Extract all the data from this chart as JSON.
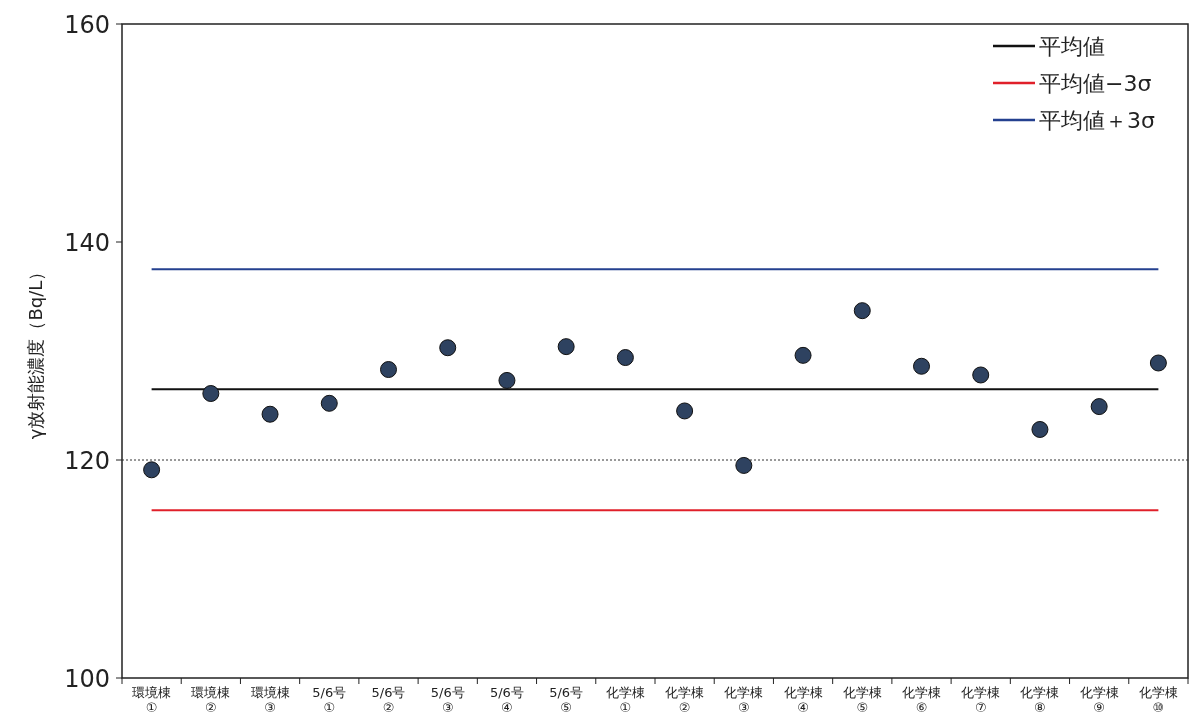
{
  "chart_data": {
    "type": "scatter",
    "ylabel": "γ放射能濃度（Bq/L）",
    "categories": [
      "環境棟①",
      "環境棟②",
      "環境棟③",
      "5/6号①",
      "5/6号②",
      "5/6号③",
      "5/6号④",
      "5/6号⑤",
      "化学棟①",
      "化学棟②",
      "化学棟③",
      "化学棟④",
      "化学棟⑤",
      "化学棟⑥",
      "化学棟⑦",
      "化学棟⑧",
      "化学棟⑨",
      "化学棟⑩"
    ],
    "ylim": [
      100,
      160
    ],
    "yticks": [
      100,
      120,
      140,
      160
    ],
    "legend": "top right",
    "series": [
      {
        "marker": "circle",
        "color": "#2e4260",
        "values": [
          119.1,
          126.1,
          124.2,
          125.2,
          128.3,
          130.3,
          127.3,
          130.4,
          129.4,
          124.5,
          119.5,
          129.6,
          133.7,
          128.6,
          127.8,
          122.8,
          124.9,
          128.9
        ]
      },
      {
        "type": "line",
        "marker": "none",
        "name": "平均値",
        "color": "#111111",
        "values": [
          126.5,
          126.5,
          126.5,
          126.5,
          126.5,
          126.5,
          126.5,
          126.5,
          126.5,
          126.5,
          126.5,
          126.5,
          126.5,
          126.5,
          126.5,
          126.5,
          126.5,
          126.5
        ]
      },
      {
        "type": "line",
        "marker": "none",
        "name": "平均値−3σ",
        "color": "#e0202a",
        "values": [
          115.4,
          115.4,
          115.4,
          115.4,
          115.4,
          115.4,
          115.4,
          115.4,
          115.4,
          115.4,
          115.4,
          115.4,
          115.4,
          115.4,
          115.4,
          115.4,
          115.4,
          115.4
        ]
      },
      {
        "type": "line",
        "marker": "none",
        "name": "平均値＋3σ",
        "color": "#24408f",
        "values": [
          137.5,
          137.5,
          137.5,
          137.5,
          137.5,
          137.5,
          137.5,
          137.5,
          137.5,
          137.5,
          137.5,
          137.5,
          137.5,
          137.5,
          137.5,
          137.5,
          137.5,
          137.5
        ]
      }
    ],
    "ref_lines": [
      {
        "axis": "y",
        "value": 120,
        "color": "#333333",
        "line_style": "dotted"
      }
    ]
  }
}
